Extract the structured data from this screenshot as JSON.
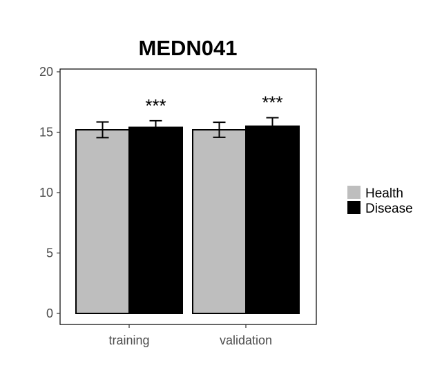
{
  "chart_data": {
    "type": "bar",
    "title": "MEDN041",
    "categories": [
      "training",
      "validation"
    ],
    "series": [
      {
        "name": "Health",
        "color": "#bebebe",
        "values": [
          15.2,
          15.2
        ],
        "errors": [
          0.65,
          0.62
        ]
      },
      {
        "name": "Disease",
        "color": "#000000",
        "values": [
          15.4,
          15.5
        ],
        "errors": [
          0.55,
          0.7
        ]
      }
    ],
    "annotations": [
      "***",
      "***"
    ],
    "ylim": [
      0,
      20
    ],
    "yticks": [
      0,
      5,
      10,
      15,
      20
    ],
    "legend_position": "right",
    "grid": false
  }
}
